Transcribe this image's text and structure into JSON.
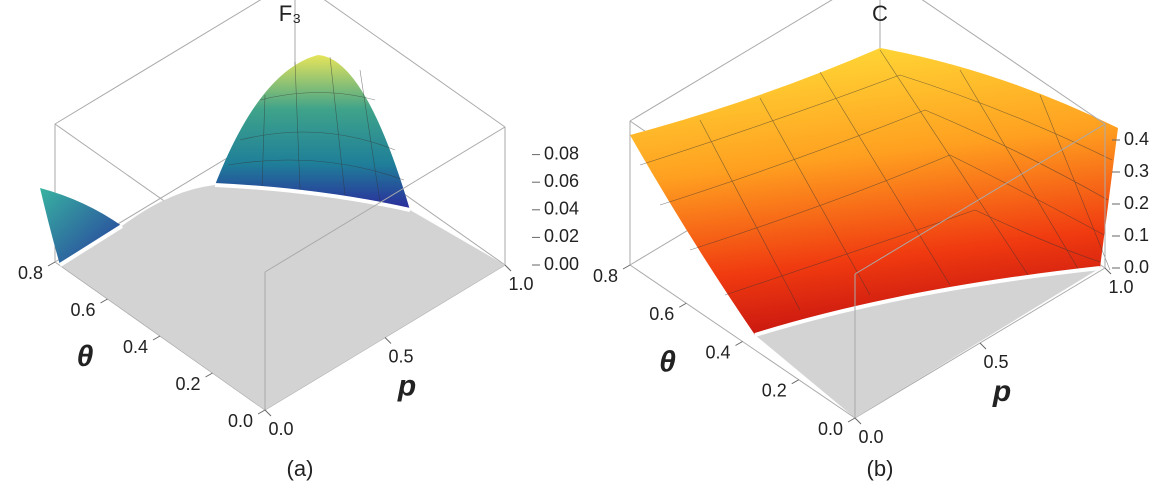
{
  "chart_data": [
    {
      "type": "surface3d",
      "title": "F₃",
      "caption": "(a)",
      "x_label": "p",
      "y_label": "θ",
      "xlim": [
        0,
        1
      ],
      "xticks": [
        {
          "value": 0,
          "label": "0.0"
        },
        {
          "value": 0.5,
          "label": "0.5"
        },
        {
          "value": 1,
          "label": "1.0"
        }
      ],
      "ylim": [
        0,
        0.8
      ],
      "yticks": [
        {
          "value": 0,
          "label": "0.0"
        },
        0.2,
        0.4,
        0.6,
        0.8
      ],
      "zlim": [
        0,
        0.1
      ],
      "zticks": [
        {
          "value": 0,
          "label": "0.00"
        },
        0.02,
        0.04,
        0.06,
        0.08
      ]
    },
    {
      "type": "surface3d",
      "title": "C",
      "caption": "(b)",
      "x_label": "p",
      "y_label": "θ",
      "xlim": [
        0,
        1
      ],
      "xticks": [
        {
          "value": 0,
          "label": "0.0"
        },
        {
          "value": 0.5,
          "label": "0.5"
        },
        {
          "value": 1,
          "label": "1.0"
        }
      ],
      "ylim": [
        0,
        0.8
      ],
      "yticks": [
        {
          "value": 0,
          "label": "0.0"
        },
        0.2,
        0.4,
        0.6,
        0.8
      ],
      "zlim": [
        0,
        0.45
      ],
      "zticks": [
        {
          "value": 0,
          "label": "0.0"
        },
        0.1,
        0.2,
        0.3,
        0.4
      ]
    }
  ]
}
